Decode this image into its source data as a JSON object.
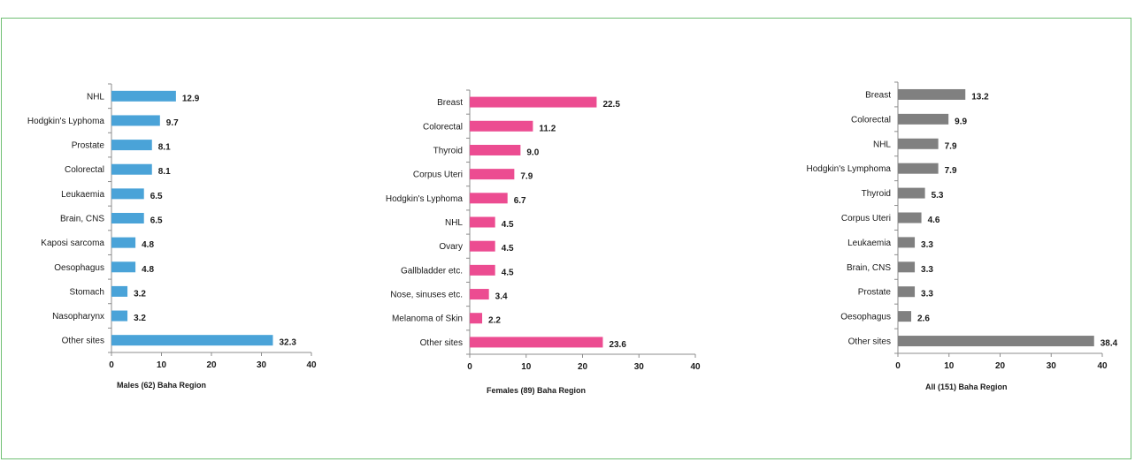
{
  "chart_data": [
    {
      "type": "bar",
      "orientation": "horizontal",
      "categories": [
        "NHL",
        "Hodgkin's Lyphoma",
        "Prostate",
        "Colorectal",
        "Leukaemia",
        "Brain, CNS",
        "Kaposi sarcoma",
        "Oesophagus",
        "Stomach",
        "Nasopharynx",
        "Other sites"
      ],
      "values": [
        12.9,
        9.7,
        8.1,
        8.1,
        6.5,
        6.5,
        4.8,
        4.8,
        3.2,
        3.2,
        32.3
      ],
      "value_labels": [
        "12.9",
        "9.7",
        "8.1",
        "8.1",
        "6.5",
        "6.5",
        "4.8",
        "4.8",
        "3.2",
        "3.2",
        "32.3"
      ],
      "xlabel": "Males (62) Baha Region",
      "xlim": [
        0,
        40
      ],
      "xticks": [
        "0",
        "10",
        "20",
        "30",
        "40"
      ],
      "color": "#4aa3d8",
      "grid": false
    },
    {
      "type": "bar",
      "orientation": "horizontal",
      "categories": [
        "Breast",
        "Colorectal",
        "Thyroid",
        "Corpus Uteri",
        "Hodgkin's Lyphoma",
        "NHL",
        "Ovary",
        "Gallbladder etc.",
        "Nose, sinuses etc.",
        "Melanoma of Skin",
        "Other sites"
      ],
      "values": [
        22.5,
        11.2,
        9.0,
        7.9,
        6.7,
        4.5,
        4.5,
        4.5,
        3.4,
        2.2,
        23.6
      ],
      "value_labels": [
        "22.5",
        "11.2",
        "9.0",
        "7.9",
        "6.7",
        "4.5",
        "4.5",
        "4.5",
        "3.4",
        "2.2",
        "23.6"
      ],
      "xlabel": "Females (89) Baha Region",
      "xlim": [
        0,
        40
      ],
      "xticks": [
        "0",
        "10",
        "20",
        "30",
        "40"
      ],
      "color": "#ec4c91",
      "grid": false
    },
    {
      "type": "bar",
      "orientation": "horizontal",
      "categories": [
        "Breast",
        "Colorectal",
        "NHL",
        "Hodgkin's Lymphoma",
        "Thyroid",
        "Corpus Uteri",
        "Leukaemia",
        "Brain, CNS",
        "Prostate",
        "Oesophagus",
        "Other sites"
      ],
      "values": [
        13.2,
        9.9,
        7.9,
        7.9,
        5.3,
        4.6,
        3.3,
        3.3,
        3.3,
        2.6,
        38.4
      ],
      "value_labels": [
        "13.2",
        "9.9",
        "7.9",
        "7.9",
        "5.3",
        "4.6",
        "3.3",
        "3.3",
        "3.3",
        "2.6",
        "38.4"
      ],
      "xlabel": "All (151) Baha Region",
      "xlim": [
        0,
        40
      ],
      "xticks": [
        "0",
        "10",
        "20",
        "30",
        "40"
      ],
      "color": "#808080",
      "grid": false
    }
  ]
}
